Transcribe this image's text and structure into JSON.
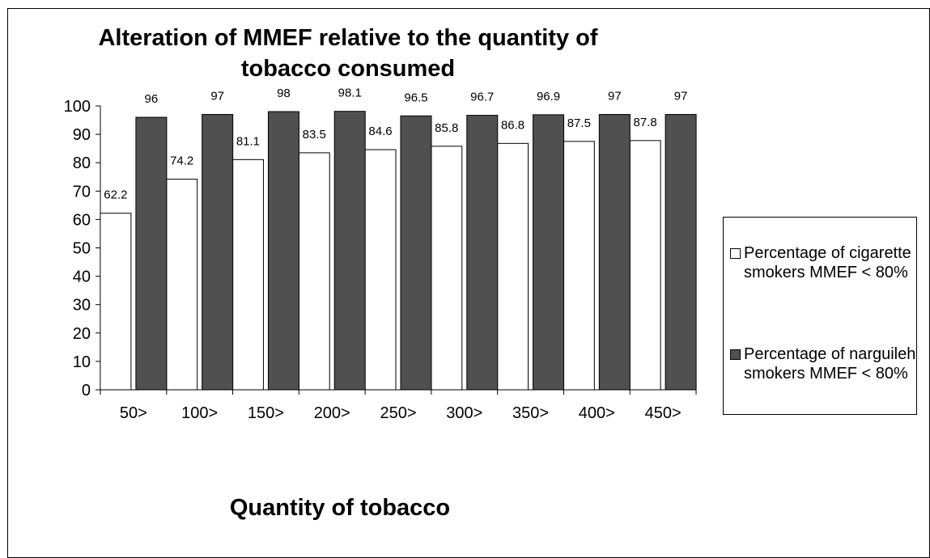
{
  "chart_data": {
    "type": "bar",
    "title": "Alteration of MMEF relative to the quantity of tobacco consumed",
    "xlabel": "Quantity of tobacco",
    "ylabel": "",
    "ylim": [
      0,
      100
    ],
    "yticks": [
      0,
      10,
      20,
      30,
      40,
      50,
      60,
      70,
      80,
      90,
      100
    ],
    "categories": [
      "50>",
      "100>",
      "150>",
      "200>",
      "250>",
      "300>",
      "350>",
      "400>",
      "450>"
    ],
    "series": [
      {
        "name": "Percentage of cigarette smokers MMEF < 80%",
        "color": "#ffffff",
        "values": [
          62.2,
          74.2,
          81.1,
          83.5,
          84.6,
          85.8,
          86.8,
          87.5,
          87.8
        ]
      },
      {
        "name": "Percentage of narguileh smokers MMEF < 80%",
        "color": "#505050",
        "values": [
          96,
          97,
          98,
          98.1,
          96.5,
          96.7,
          96.9,
          97,
          97
        ]
      }
    ],
    "grid": false,
    "legend_position": "right"
  }
}
